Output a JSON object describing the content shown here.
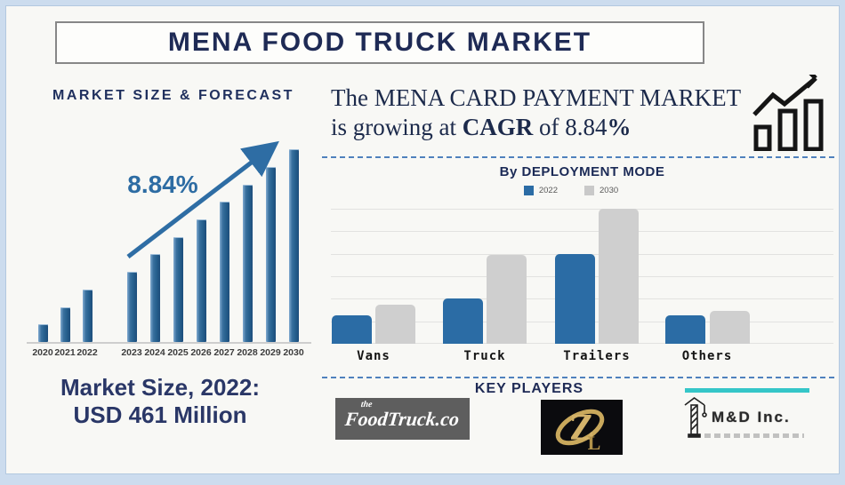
{
  "title": "MENA FOOD TRUCK MARKET",
  "colors": {
    "navy_text": "#1e2a55",
    "bar_blue": "#2b6ca5",
    "bar_gray": "#cfcfcf",
    "arrow_blue": "#2e6da4",
    "dashed_line_blue": "#4f81bd",
    "frame_light_blue": "#ccdcee",
    "teal_accent": "#35c6c8",
    "gold": "#c9a85c",
    "foodtruck_gray": "#5e5e5e"
  },
  "left_panel": {
    "heading": "MARKET SIZE & FORECAST",
    "cagr_label": "8.84%",
    "market_size_line1": "Market Size, 2022:",
    "market_size_line2": "USD 461 Million"
  },
  "right_panel": {
    "headline_line1": "The MENA CARD PAYMENT MARKET",
    "headline_pre": "is growing at ",
    "headline_bold1": "CAGR",
    "headline_mid": " of ",
    "headline_value": "8.84",
    "headline_bold2": "%",
    "deployment_title": "By DEPLOYMENT MODE",
    "key_players_heading": "KEY PLAYERS",
    "logos": {
      "foodtruck_prefix": "the",
      "foodtruck_main": "FoodTruck.co",
      "zl_monogram": "ZL",
      "md_label": "M&D Inc."
    }
  },
  "chart_data": [
    {
      "type": "bar",
      "title": "MARKET SIZE & FORECAST",
      "annotation": "8.84%",
      "categories": [
        "2020",
        "2021",
        "2022",
        "2023",
        "2024",
        "2025",
        "2026",
        "2027",
        "2028",
        "2029",
        "2030"
      ],
      "values": [
        1,
        2,
        3,
        4,
        5,
        6,
        7,
        8,
        9,
        10,
        11
      ],
      "value_note": "no value axis shown; bars grow linearly, CAGR arrow annotation 8.84%",
      "xlabel": "",
      "ylabel": "",
      "grid": false,
      "legend": "none"
    },
    {
      "type": "bar",
      "title": "By DEPLOYMENT MODE",
      "categories": [
        "Vans",
        "Truck",
        "Trailers",
        "Others"
      ],
      "series": [
        {
          "name": "2022",
          "values": [
            1.25,
            2.0,
            4.0,
            1.25
          ]
        },
        {
          "name": "2030",
          "values": [
            1.75,
            3.95,
            6.0,
            1.45
          ]
        }
      ],
      "value_note": "no value axis labels; values in gridline units (6 intervals, top gridline = 6)",
      "ylim": [
        0,
        6
      ],
      "grid": true,
      "legend": "top"
    }
  ]
}
